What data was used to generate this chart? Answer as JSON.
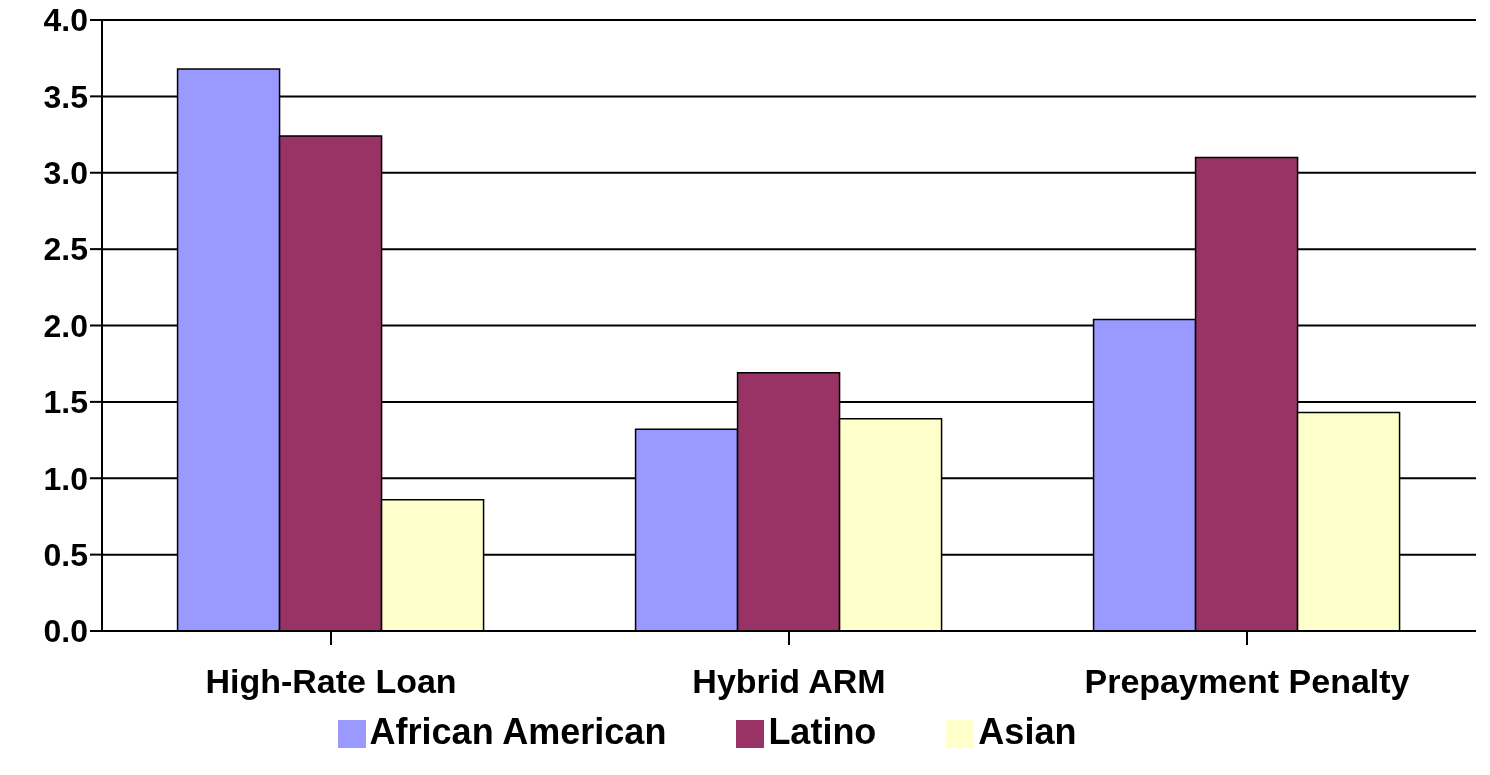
{
  "chart_data": {
    "type": "bar",
    "categories": [
      "High-Rate Loan",
      "Hybrid ARM",
      "Prepayment Penalty"
    ],
    "series": [
      {
        "name": "African American",
        "color": "#9999ff",
        "values": [
          3.68,
          1.32,
          2.04
        ]
      },
      {
        "name": "Latino",
        "color": "#993366",
        "values": [
          3.24,
          1.69,
          3.1
        ]
      },
      {
        "name": "Asian",
        "color": "#ffffcc",
        "values": [
          0.86,
          1.39,
          1.43
        ]
      }
    ],
    "ylim": [
      0,
      4
    ],
    "yticks": [
      {
        "value": 0,
        "label": "0.0"
      },
      {
        "value": 0.5,
        "label": "0.5"
      },
      {
        "value": 1,
        "label": "1.0"
      },
      {
        "value": 1.5,
        "label": "1.5"
      },
      {
        "value": 2,
        "label": "2.0"
      },
      {
        "value": 2.5,
        "label": "2.5"
      },
      {
        "value": 3,
        "label": "3.0"
      },
      {
        "value": 3.5,
        "label": "3.5"
      },
      {
        "value": 4,
        "label": "4.0"
      }
    ],
    "grid": "y",
    "legend": "bottom"
  }
}
